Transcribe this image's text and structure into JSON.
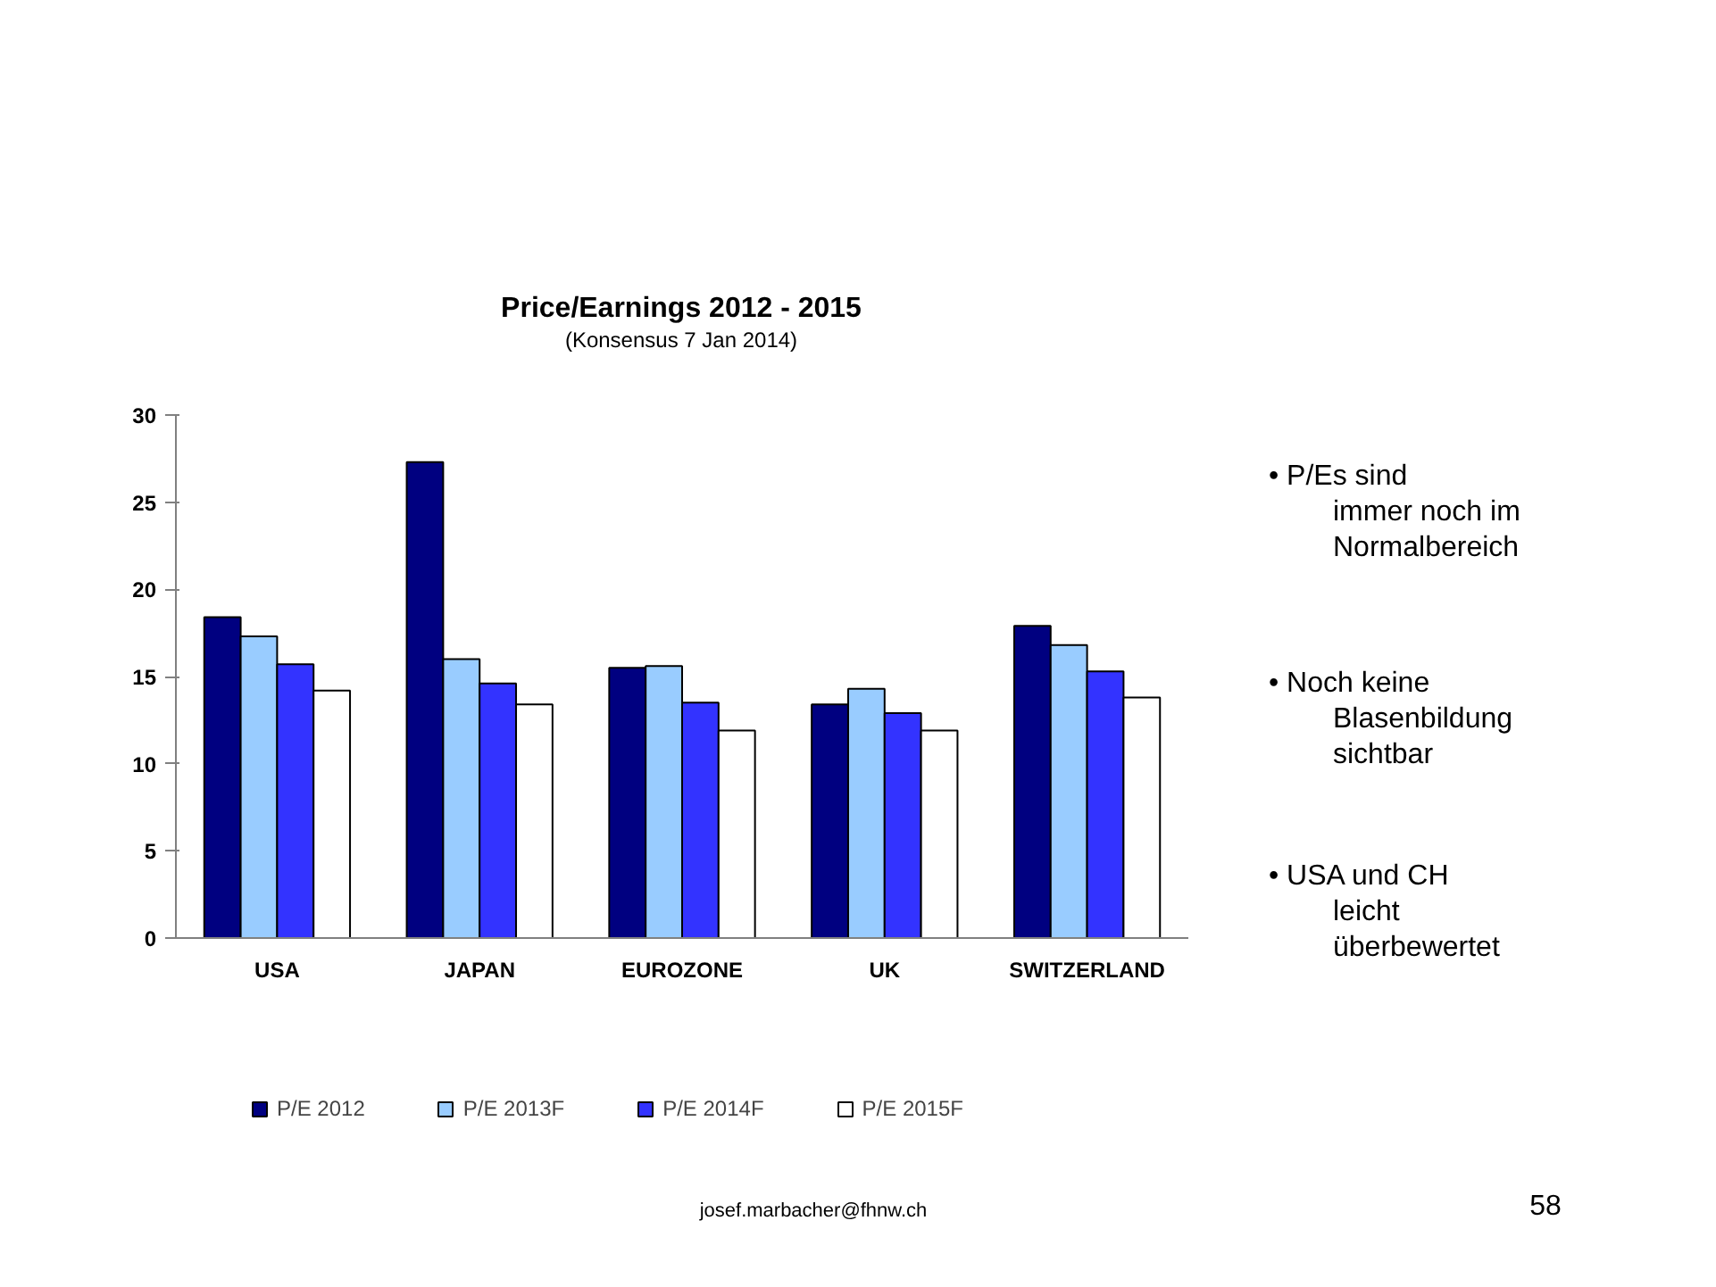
{
  "chart_data": {
    "type": "bar",
    "title": "Price/Earnings 2012 - 2015",
    "subtitle": "(Konsensus 7 Jan 2014)",
    "categories": [
      "USA",
      "JAPAN",
      "EUROZONE",
      "UK",
      "SWITZERLAND"
    ],
    "series": [
      {
        "name": "P/E 2012",
        "color": "#000080",
        "values": [
          18.4,
          27.3,
          15.5,
          13.4,
          17.9
        ]
      },
      {
        "name": "P/E 2013F",
        "color": "#99ccff",
        "values": [
          17.3,
          16.0,
          15.6,
          14.3,
          16.8
        ]
      },
      {
        "name": "P/E 2014F",
        "color": "#3333ff",
        "values": [
          15.7,
          14.6,
          13.5,
          12.9,
          15.3
        ]
      },
      {
        "name": "P/E 2015F",
        "color": "#ffffff",
        "values": [
          14.2,
          13.4,
          11.9,
          11.9,
          13.8
        ]
      }
    ],
    "ylim": [
      0,
      30
    ],
    "yticks": [
      0,
      5,
      10,
      15,
      20,
      25,
      30
    ],
    "grid": false,
    "legend": "bottom",
    "annotations": [
      "• P/Es sind immer noch im Normalbereich",
      "• Noch keine Blasenbildung sichtbar",
      "• USA und CH leicht überbewertet",
      "josef.marbacher@fhnw.ch",
      "58"
    ]
  }
}
